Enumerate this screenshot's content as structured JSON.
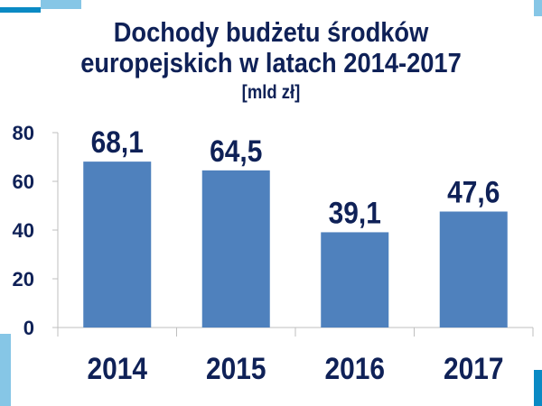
{
  "chart_data": {
    "type": "bar",
    "title": [
      "Dochody budżetu środków",
      "europejskich w latach 2014-2017",
      "[mld zł]"
    ],
    "categories": [
      "2014",
      "2015",
      "2016",
      "2017"
    ],
    "values": [
      68.1,
      64.5,
      39.1,
      47.6
    ],
    "data_labels": [
      "68,1",
      "64,5",
      "39,1",
      "47,6"
    ],
    "xlabel": "",
    "ylabel": "",
    "ylim": [
      0,
      80
    ],
    "yticks": [
      0,
      20,
      40,
      60,
      80
    ],
    "grid": false,
    "legend": "none",
    "bar_color": "#4f81bd",
    "text_color": "#0f2157"
  }
}
